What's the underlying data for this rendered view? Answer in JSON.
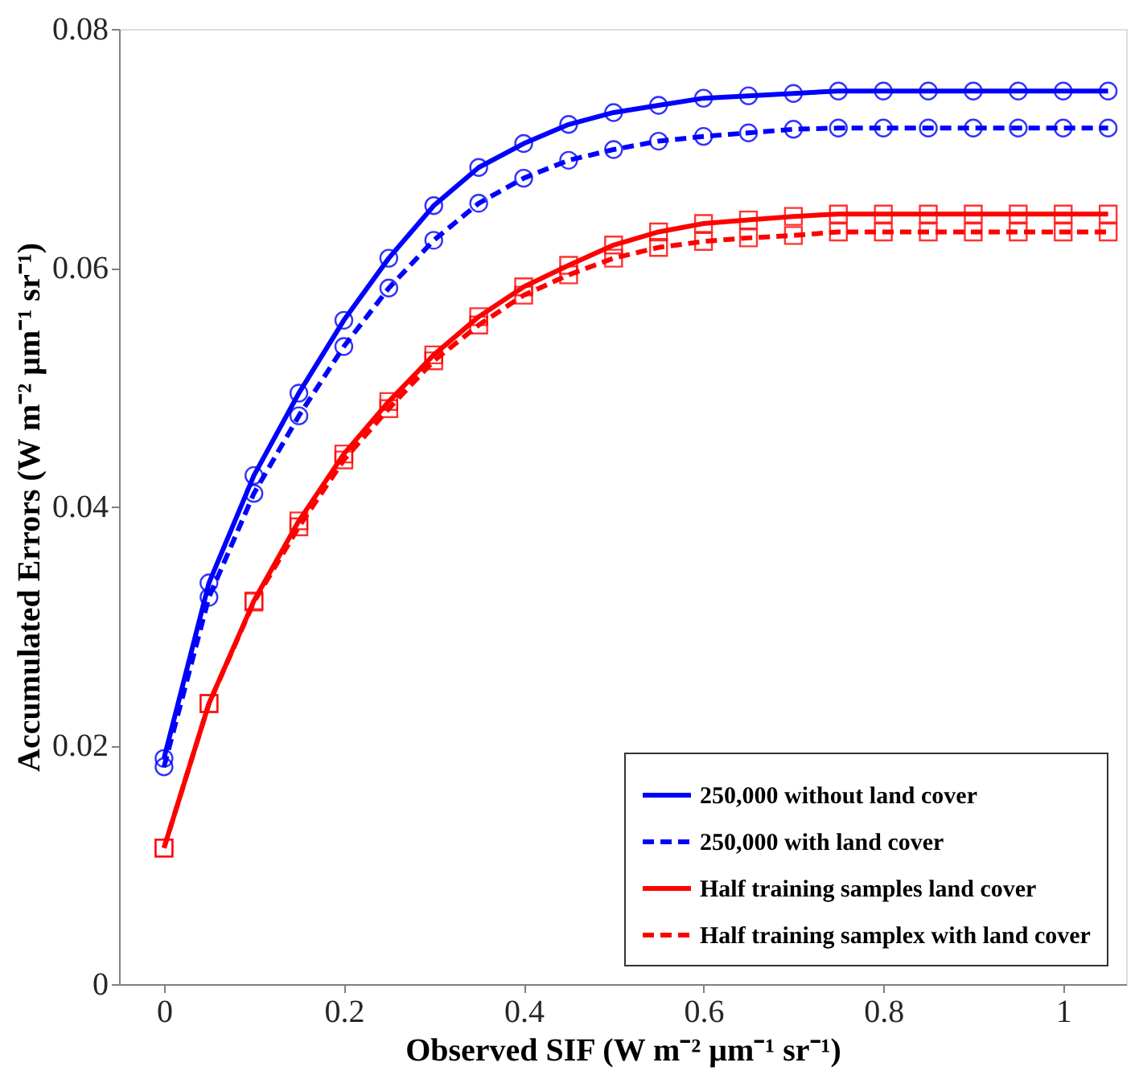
{
  "chart_data": {
    "type": "line",
    "xlabel": "Observed SIF (W m⁻² μm⁻¹ sr⁻¹)",
    "ylabel": "Accumulated Errors (W m⁻² μm⁻¹ sr⁻¹)",
    "x": [
      0,
      0.05,
      0.1,
      0.15,
      0.2,
      0.25,
      0.3,
      0.35,
      0.4,
      0.45,
      0.5,
      0.55,
      0.6,
      0.65,
      0.7,
      0.75,
      0.8,
      0.85,
      0.9,
      0.95,
      1.0,
      1.05
    ],
    "xlim": [
      -0.05,
      1.07
    ],
    "xticks": [
      0,
      0.2,
      0.4,
      0.6,
      0.8,
      1
    ],
    "ylim": [
      0,
      0.08
    ],
    "yticks": [
      0,
      0.02,
      0.04,
      0.06,
      0.08
    ],
    "grid": false,
    "legend": "bottom right",
    "series": [
      {
        "name": "250,000 without land cover",
        "color": "#0000ff",
        "marker": "circle",
        "line_style": "solid",
        "values": [
          0.0189,
          0.0336,
          0.0426,
          0.0495,
          0.0556,
          0.0608,
          0.0652,
          0.0684,
          0.0704,
          0.072,
          0.073,
          0.0736,
          0.0742,
          0.0744,
          0.0746,
          0.0748,
          0.0748,
          0.0748,
          0.0748,
          0.0748,
          0.0748,
          0.0748
        ]
      },
      {
        "name": "250,000 with land cover",
        "color": "#0000ff",
        "marker": "circle",
        "line_style": "dashed",
        "values": [
          0.0182,
          0.0324,
          0.0411,
          0.0476,
          0.0534,
          0.0583,
          0.0623,
          0.0654,
          0.0675,
          0.069,
          0.0699,
          0.0706,
          0.071,
          0.0713,
          0.0716,
          0.0717,
          0.0717,
          0.0717,
          0.0717,
          0.0717,
          0.0717,
          0.0717
        ]
      },
      {
        "name": "Half training samples land cover",
        "color": "#ff0000",
        "marker": "square",
        "line_style": "solid",
        "values": [
          0.0114,
          0.0235,
          0.0321,
          0.0388,
          0.0444,
          0.0488,
          0.0527,
          0.0559,
          0.0584,
          0.0602,
          0.0619,
          0.063,
          0.0637,
          0.064,
          0.0643,
          0.0645,
          0.0645,
          0.0645,
          0.0645,
          0.0645,
          0.0645,
          0.0645
        ]
      },
      {
        "name": "Half training samplex with land cover",
        "color": "#ff0000",
        "marker": "square",
        "line_style": "dashed",
        "values": [
          0.0114,
          0.0235,
          0.032,
          0.0383,
          0.0439,
          0.0482,
          0.0522,
          0.0552,
          0.0577,
          0.0594,
          0.0608,
          0.0617,
          0.0622,
          0.0625,
          0.0627,
          0.063,
          0.063,
          0.063,
          0.063,
          0.063,
          0.063,
          0.063
        ]
      }
    ]
  }
}
